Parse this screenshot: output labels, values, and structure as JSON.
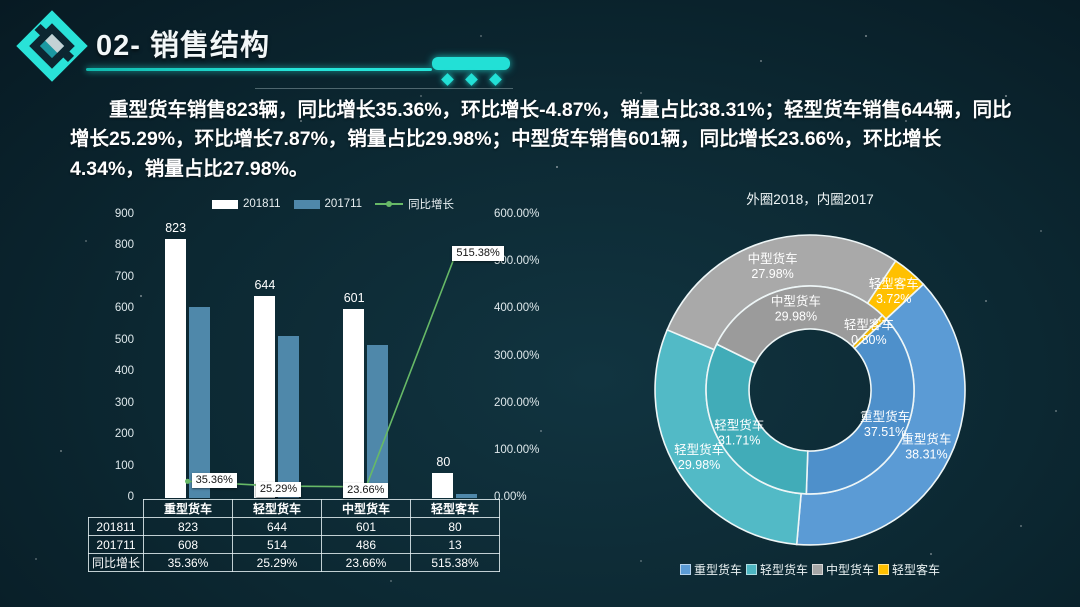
{
  "slide": {
    "title": "02- 销售结构",
    "summary": "重型货车销售823辆，同比增长35.36%，环比增长-4.87%，销量占比38.31%；轻型货车销售644辆，同比增长25.29%，环比增长7.87%，销量占比29.98%；中型货车销售601辆，同比增长23.66%，环比增长4.34%，销量占比27.98%。",
    "accent_color": "#22e0d6"
  },
  "chart_data": [
    {
      "type": "bar",
      "title": "",
      "categories": [
        "重型货车",
        "轻型货车",
        "中型货车",
        "轻型客车"
      ],
      "series": [
        {
          "name": "201811",
          "type": "bar",
          "color": "#ffffff",
          "values": [
            823,
            644,
            601,
            80
          ]
        },
        {
          "name": "201711",
          "type": "bar",
          "color": "#4f88aa",
          "values": [
            608,
            514,
            486,
            13
          ]
        },
        {
          "name": "同比增长",
          "type": "line",
          "color": "#67b967",
          "values": [
            35.36,
            25.29,
            23.66,
            515.38
          ],
          "labels": [
            "35.36%",
            "25.29%",
            "23.66%",
            "515.38%"
          ]
        }
      ],
      "left_axis": {
        "min": 0,
        "max": 900,
        "ticks": [
          "900",
          "800",
          "700",
          "600",
          "500",
          "400",
          "300",
          "200",
          "100",
          "0"
        ]
      },
      "right_axis": {
        "min": 0,
        "max": 600,
        "ticks": [
          "600.00%",
          "500.00%",
          "400.00%",
          "300.00%",
          "200.00%",
          "100.00%",
          "0.00%"
        ]
      },
      "legend_position": "top",
      "grid": false
    },
    {
      "type": "pie",
      "title": "外圈2018，内圈2017",
      "categories": [
        "重型货车",
        "轻型货车",
        "中型货车",
        "轻型客车"
      ],
      "legend_colors": [
        "#5b9bd5",
        "#4db6c2",
        "#a6a6a6",
        "#ffc000"
      ],
      "start_angle_deg": 47,
      "rings": [
        {
          "name": "外圈2018",
          "colors": [
            "#5b9bd5",
            "#52bac6",
            "#a9a9a9",
            "#ffc000"
          ],
          "slices": [
            {
              "name": "重型货车",
              "pct": 38.31,
              "label": "38.31%"
            },
            {
              "name": "轻型货车",
              "pct": 29.98,
              "label": "29.98%"
            },
            {
              "name": "中型货车",
              "pct": 27.98,
              "label": "27.98%"
            },
            {
              "name": "轻型客车",
              "pct": 3.72,
              "label": "3.72%"
            }
          ]
        },
        {
          "name": "内圈2017",
          "colors": [
            "#4e90cb",
            "#41acb8",
            "#9b9b9b",
            "#f0b400"
          ],
          "slices": [
            {
              "name": "重型货车",
              "pct": 37.51,
              "label": "37.51%"
            },
            {
              "name": "轻型货车",
              "pct": 31.71,
              "label": "31.71%"
            },
            {
              "name": "中型货车",
              "pct": 29.98,
              "label": "29.98%"
            },
            {
              "name": "轻型客车",
              "pct": 0.8,
              "label": "0.80%"
            }
          ]
        }
      ],
      "legend_position": "bottom"
    }
  ],
  "table": {
    "corner": "",
    "col_headers": [
      "重型货车",
      "轻型货车",
      "中型货车",
      "轻型客车"
    ],
    "rows": [
      {
        "header": "201811",
        "cells": [
          "823",
          "644",
          "601",
          "80"
        ]
      },
      {
        "header": "201711",
        "cells": [
          "608",
          "514",
          "486",
          "13"
        ]
      },
      {
        "header": "同比增长",
        "cells": [
          "35.36%",
          "25.29%",
          "23.66%",
          "515.38%"
        ]
      }
    ]
  }
}
